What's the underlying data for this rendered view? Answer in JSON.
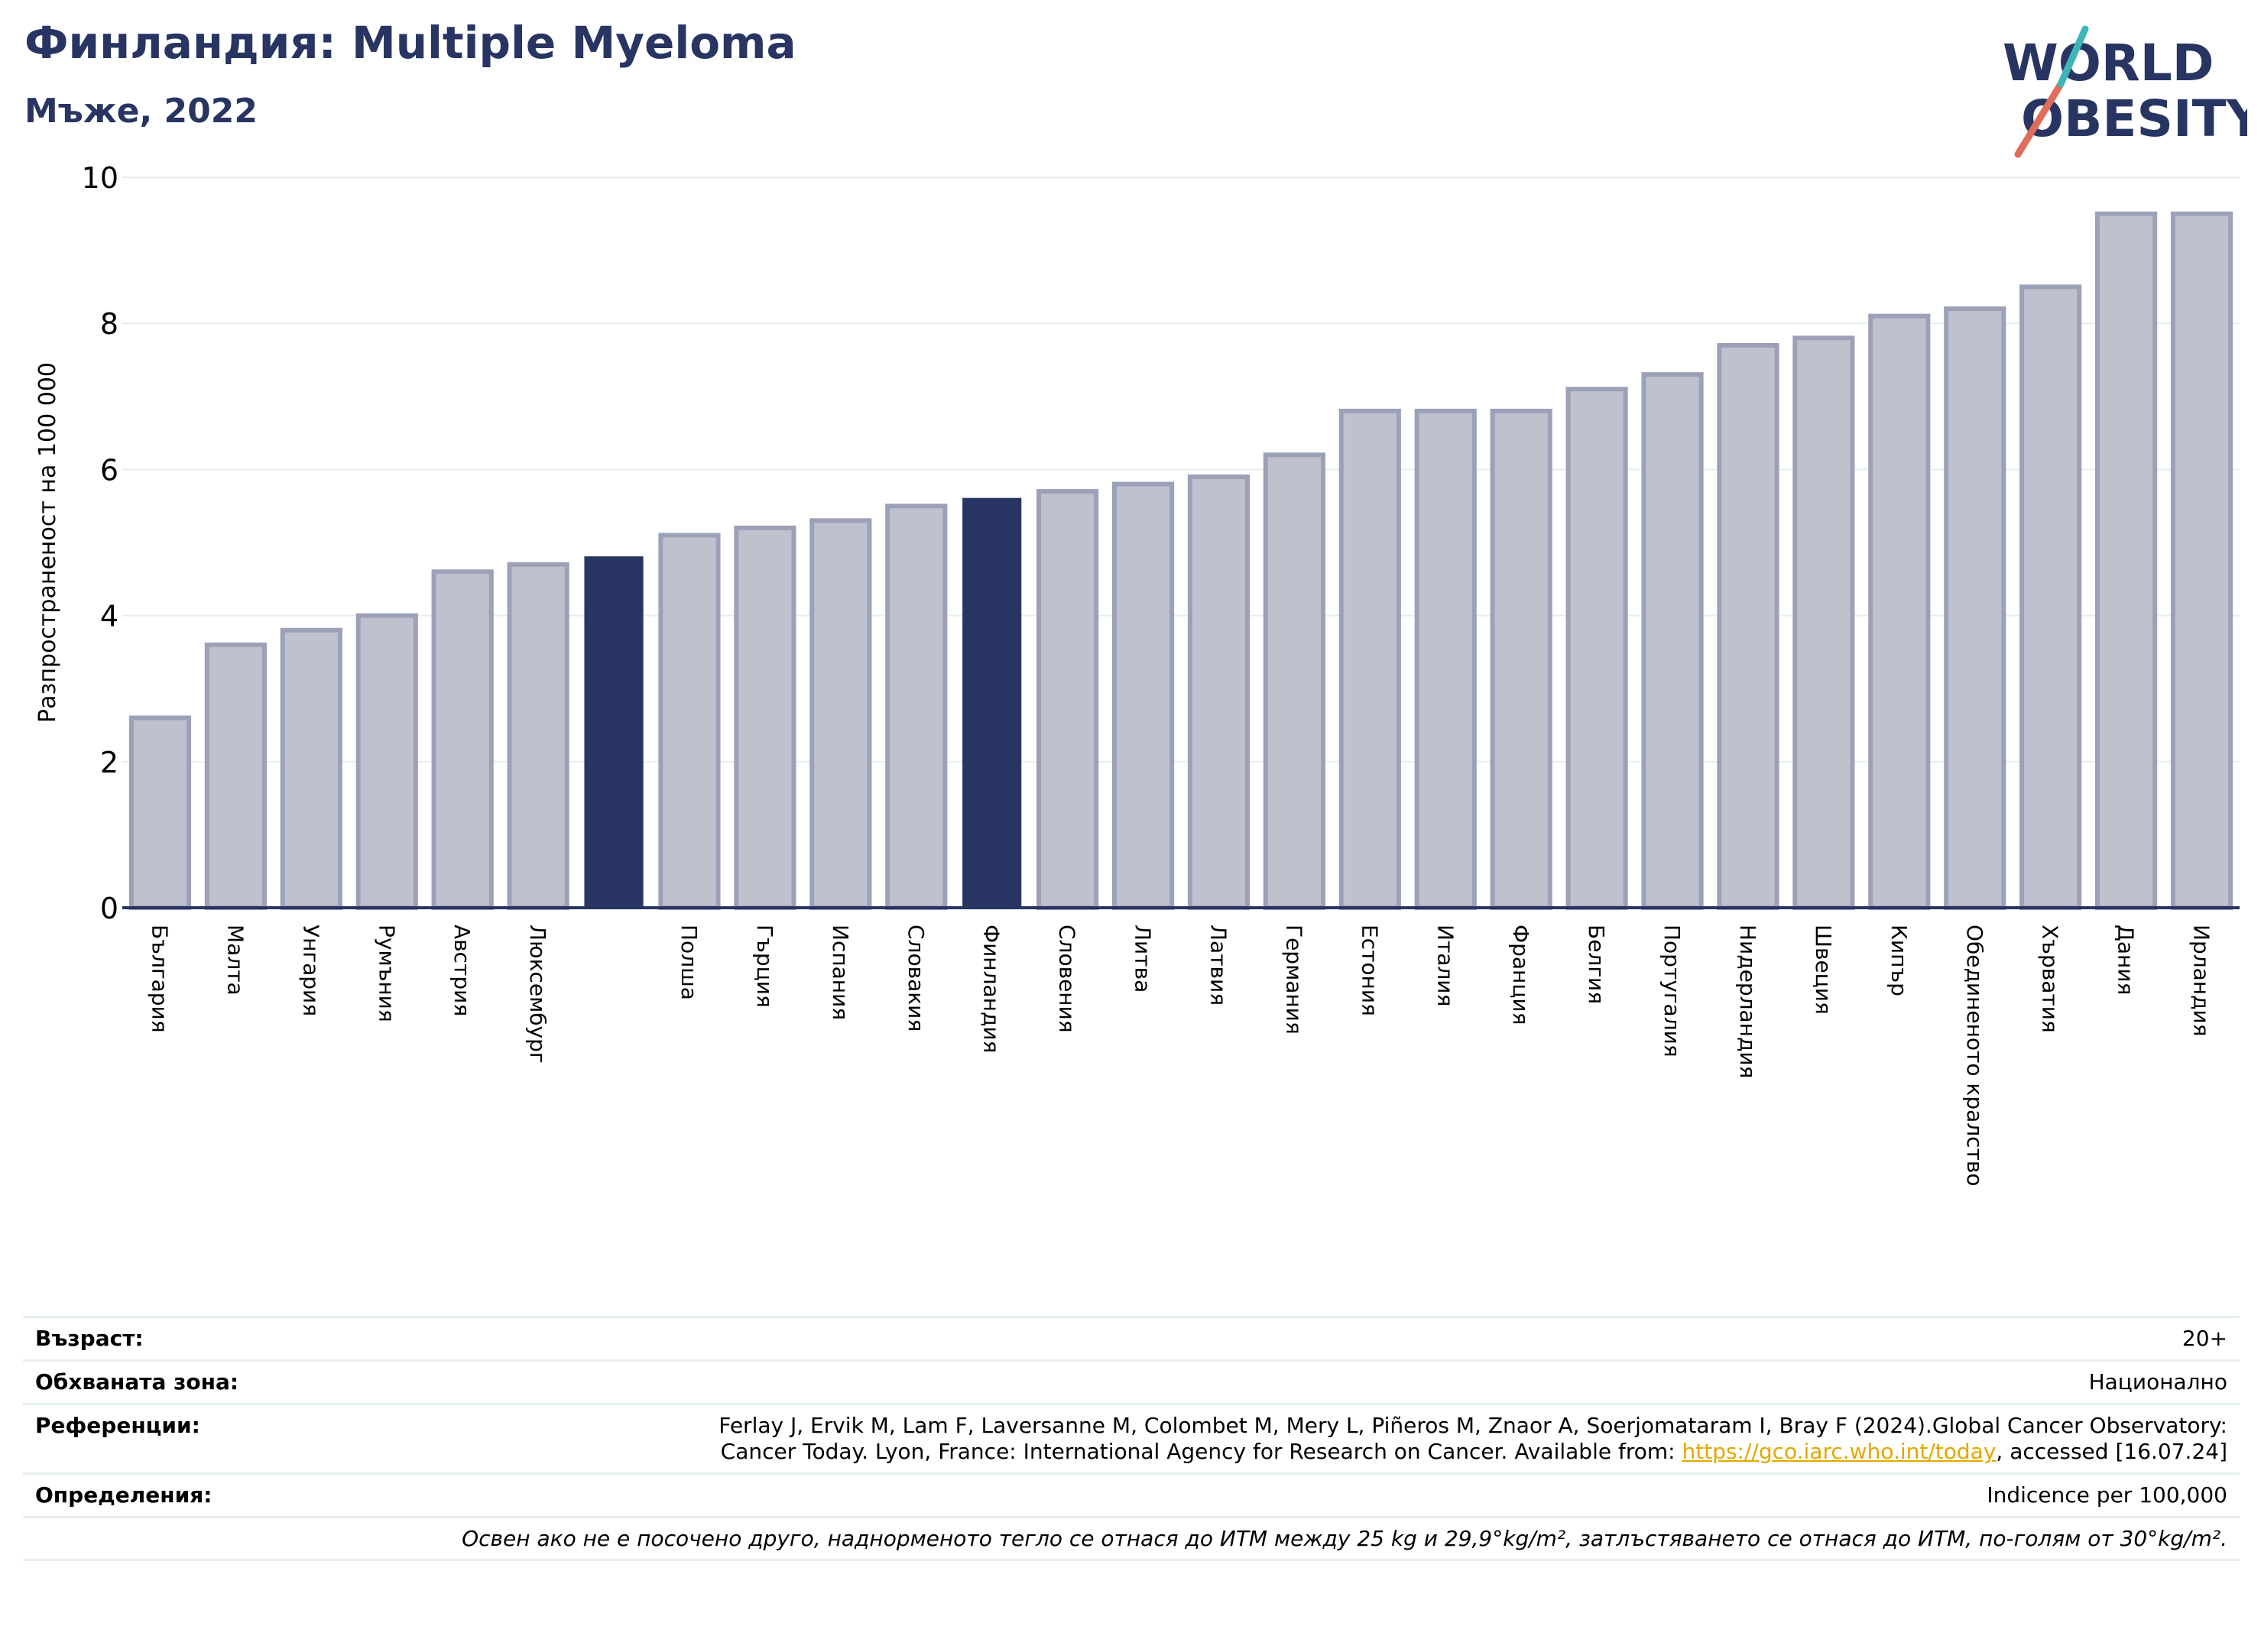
{
  "title": "Финландия: Multiple Myeloma",
  "subtitle": "Мъже, 2022",
  "logo": {
    "line1": "WORLD",
    "line2": "OBESITY"
  },
  "colors": {
    "bar": "#bfc1ce",
    "bar_edge": "#9da1b8",
    "highlight": "#283562",
    "title": "#283562",
    "link": "#e0a800"
  },
  "chart_data": {
    "type": "bar",
    "ylabel": "Разпространеност  на 100 000",
    "ylim": [
      0,
      10
    ],
    "yticks": [
      0,
      2,
      4,
      6,
      8,
      10
    ],
    "grid": true,
    "categories": [
      "България",
      "Малта",
      "Унгария",
      "Румъния",
      "Австрия",
      "Люксембург",
      "",
      "Полша",
      "Гърция",
      "Испания",
      "Словакия",
      "Финландия",
      "Словения",
      "Литва",
      "Латвия",
      "Германия",
      "Естония",
      "Италия",
      "Франция",
      "Белгия",
      "Португалия",
      "Нидерландия",
      "Швеция",
      "Кипър",
      "Обединеното кралство",
      "Хърватия",
      "Дания",
      "Ирландия"
    ],
    "values": [
      2.6,
      3.6,
      3.8,
      4.0,
      4.6,
      4.7,
      4.8,
      5.1,
      5.2,
      5.3,
      5.5,
      5.6,
      5.7,
      5.8,
      5.9,
      6.2,
      6.8,
      6.8,
      6.8,
      7.1,
      7.3,
      7.7,
      7.8,
      8.1,
      8.2,
      8.5,
      9.5,
      9.5
    ],
    "highlighted": [
      6,
      11
    ]
  },
  "info": {
    "age_label": "Възраст:",
    "age_value": "20+",
    "area_label": "Обхваната зона:",
    "area_value": "Национално",
    "refs_label": "Референции:",
    "refs_line1": "Ferlay J, Ervik M, Lam F, Laversanne M, Colombet M, Mery L, Piñeros M, Znaor A, Soerjomataram I, Bray F (2024).Global Cancer Observatory:",
    "refs_line2_pre": "Cancer Today. Lyon, France: International Agency for Research on Cancer. Available from: ",
    "refs_link": "https://gco.iarc.who.int/today",
    "refs_line2_post": ", accessed [16.07.24]",
    "defs_label": "Определения:",
    "defs_value": "Indicence per 100,000",
    "note": "Освен ако не е посочено друго, наднорменото тегло се отнася до ИТМ между 25 kg и 29,9°kg/m², затлъстяването се отнася до ИТМ, по-голям от 30°kg/m²."
  }
}
